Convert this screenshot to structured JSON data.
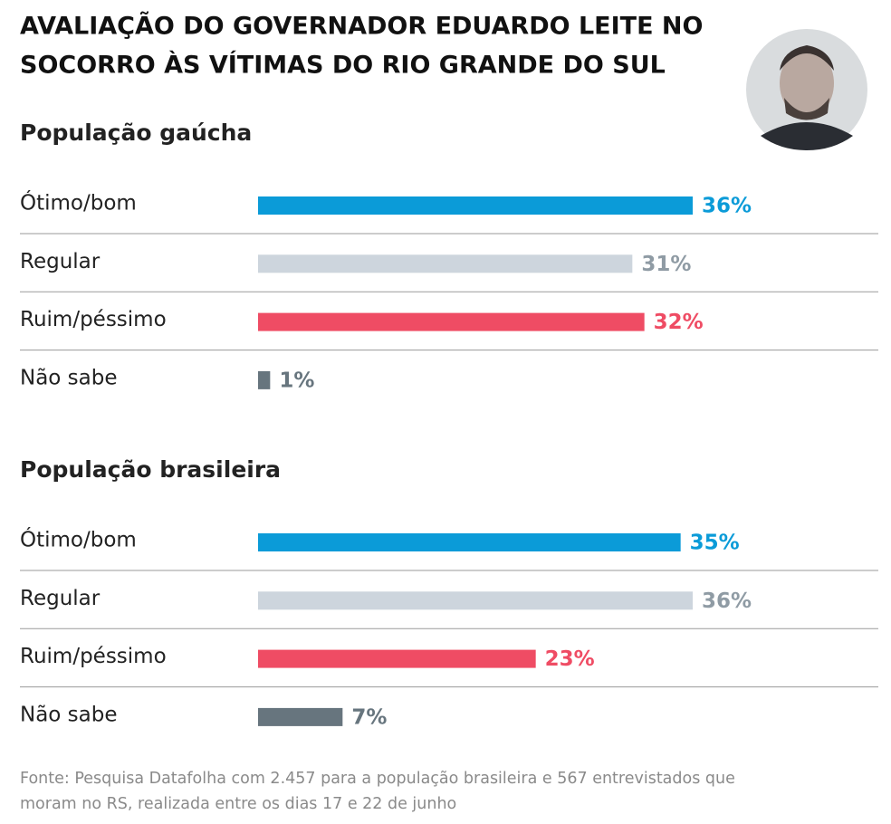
{
  "title": [
    "AVALIAÇÃO DO GOVERNADOR EDUARDO LEITE NO",
    "SOCORRO ÀS VÍTIMAS DO RIO GRANDE DO SUL"
  ],
  "chart_data": [
    {
      "type": "bar",
      "title": "População gaúcha",
      "categories": [
        "Ótimo/bom",
        "Regular",
        "Ruim/péssimo",
        "Não sabe"
      ],
      "values": [
        36,
        31,
        32,
        1
      ],
      "value_labels": [
        "36%",
        "31%",
        "32%",
        "1%"
      ],
      "colors": [
        "#0b9bd8",
        "#cdd5dd",
        "#ef4c64",
        "#67757e"
      ],
      "label_colors": [
        "#0b9bd8",
        "#8f9ba4",
        "#ef4c64",
        "#67757e"
      ]
    },
    {
      "type": "bar",
      "title": "População brasileira",
      "categories": [
        "Ótimo/bom",
        "Regular",
        "Ruim/péssimo",
        "Não sabe"
      ],
      "values": [
        35,
        36,
        23,
        7
      ],
      "value_labels": [
        "35%",
        "36%",
        "23%",
        "7%"
      ],
      "colors": [
        "#0b9bd8",
        "#cdd5dd",
        "#ef4c64",
        "#67757e"
      ],
      "label_colors": [
        "#0b9bd8",
        "#8f9ba4",
        "#ef4c64",
        "#67757e"
      ]
    }
  ],
  "source": [
    "Fonte: Pesquisa Datafolha com 2.457 para a população brasileira e 567 entrevistados que",
    "moram no RS, realizada entre os dias 17 e 22 de junho"
  ]
}
